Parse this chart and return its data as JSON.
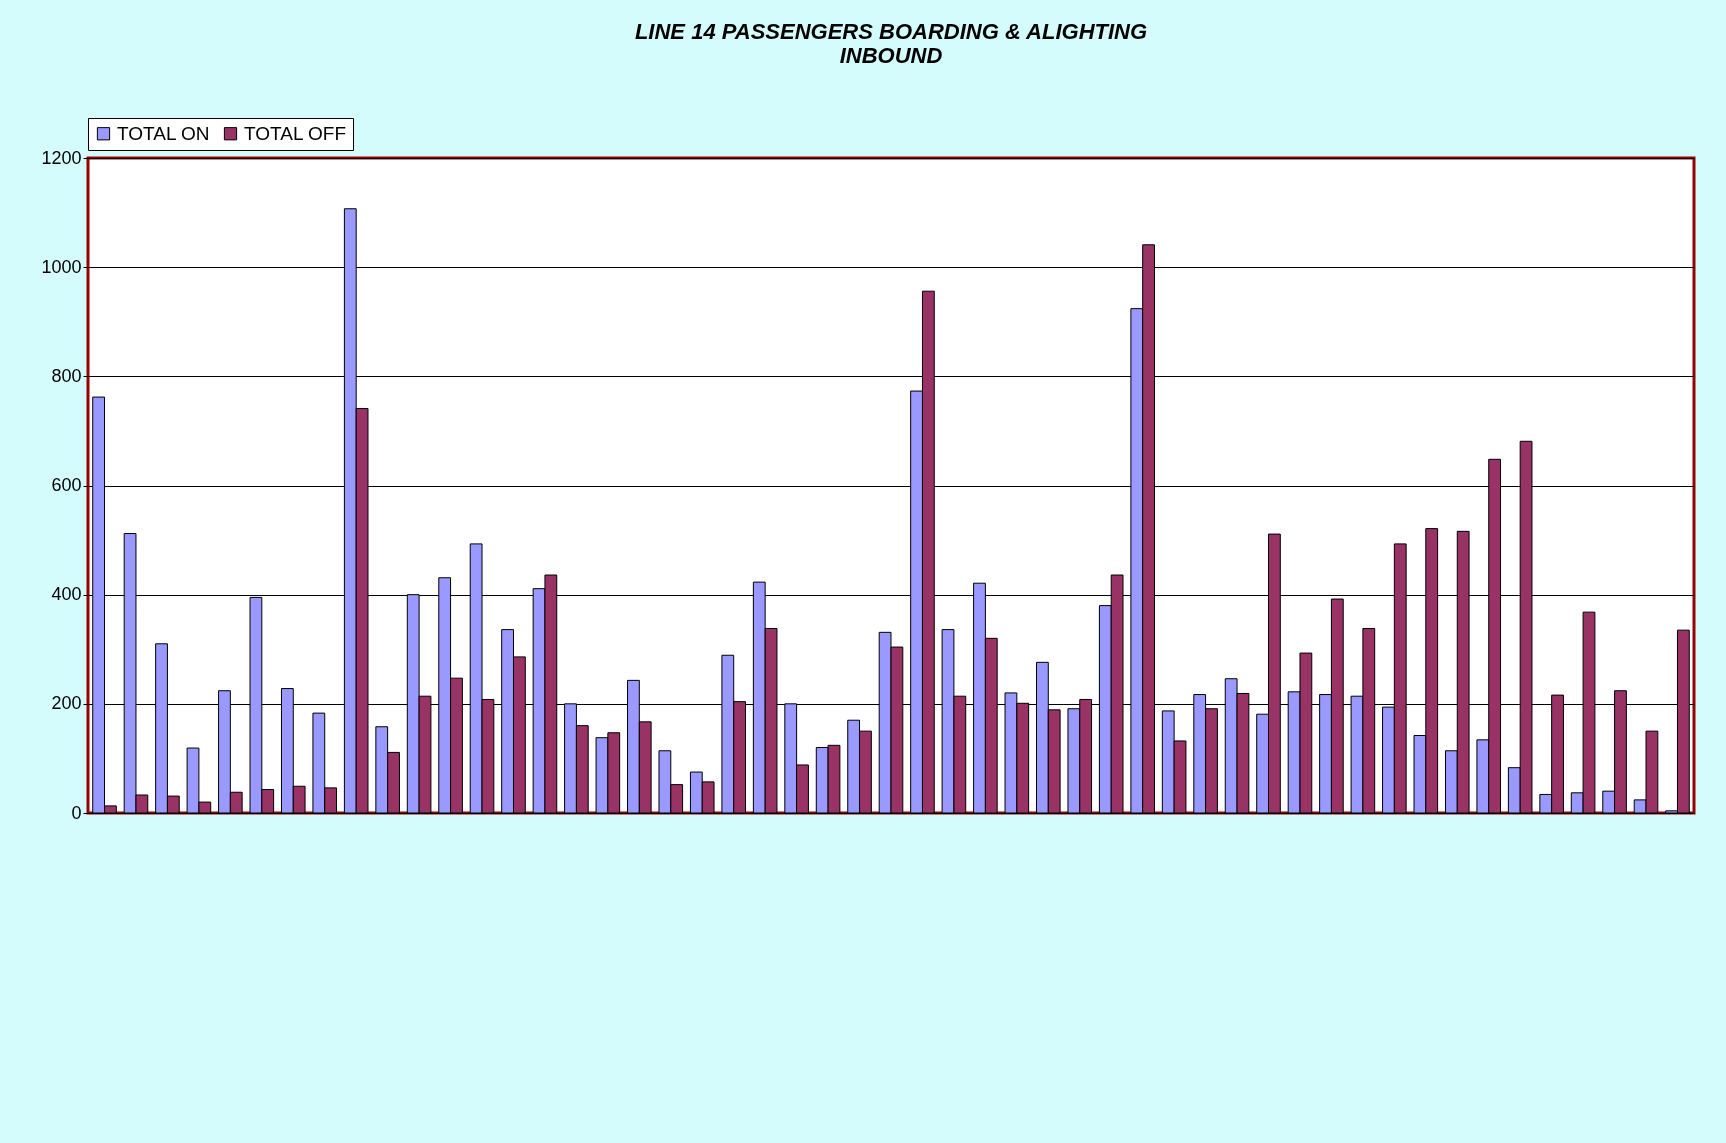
{
  "chart_data": {
    "type": "bar",
    "title": "LINE 14 PASSENGERS BOARDING & ALIGHTING\nINBOUND",
    "categories": [
      null,
      null,
      null,
      null,
      null,
      null,
      null,
      null,
      null,
      null,
      null,
      null,
      null,
      null,
      null,
      null,
      null,
      null,
      null,
      null,
      null,
      null,
      null,
      null,
      null,
      null,
      null,
      null,
      null,
      null,
      null,
      null,
      null,
      null,
      null,
      null,
      null,
      null,
      null,
      null,
      null,
      null,
      null,
      null,
      null,
      null,
      null,
      null,
      null,
      null,
      null
    ],
    "series": [
      {
        "name": "TOTAL ON",
        "color": "#9999ff",
        "values": [
          762,
          512,
          310,
          119,
          224,
          395,
          228,
          183,
          1107,
          158,
          400,
          431,
          493,
          336,
          411,
          200,
          138,
          243,
          114,
          75,
          289,
          423,
          200,
          120,
          170,
          331,
          773,
          336,
          421,
          220,
          276,
          191,
          380,
          924,
          187,
          217,
          246,
          181,
          222,
          217,
          214,
          194,
          142,
          114,
          134,
          83,
          34,
          37,
          40,
          24,
          4
        ]
      },
      {
        "name": "TOTAL OFF",
        "color": "#993366",
        "values": [
          13,
          33,
          31,
          20,
          38,
          43,
          49,
          46,
          741,
          111,
          214,
          247,
          208,
          286,
          436,
          160,
          147,
          167,
          52,
          57,
          204,
          338,
          88,
          124,
          150,
          304,
          956,
          214,
          320,
          201,
          189,
          208,
          436,
          1041,
          132,
          191,
          219,
          511,
          293,
          392,
          338,
          493,
          521,
          516,
          648,
          681,
          216,
          368,
          224,
          150,
          335
        ]
      }
    ],
    "ylim": [
      0,
      1200
    ],
    "yticks": [
      0,
      200,
      400,
      600,
      800,
      1000,
      1200
    ],
    "grid": "y",
    "legend": "top left",
    "tick_labels": "y"
  }
}
